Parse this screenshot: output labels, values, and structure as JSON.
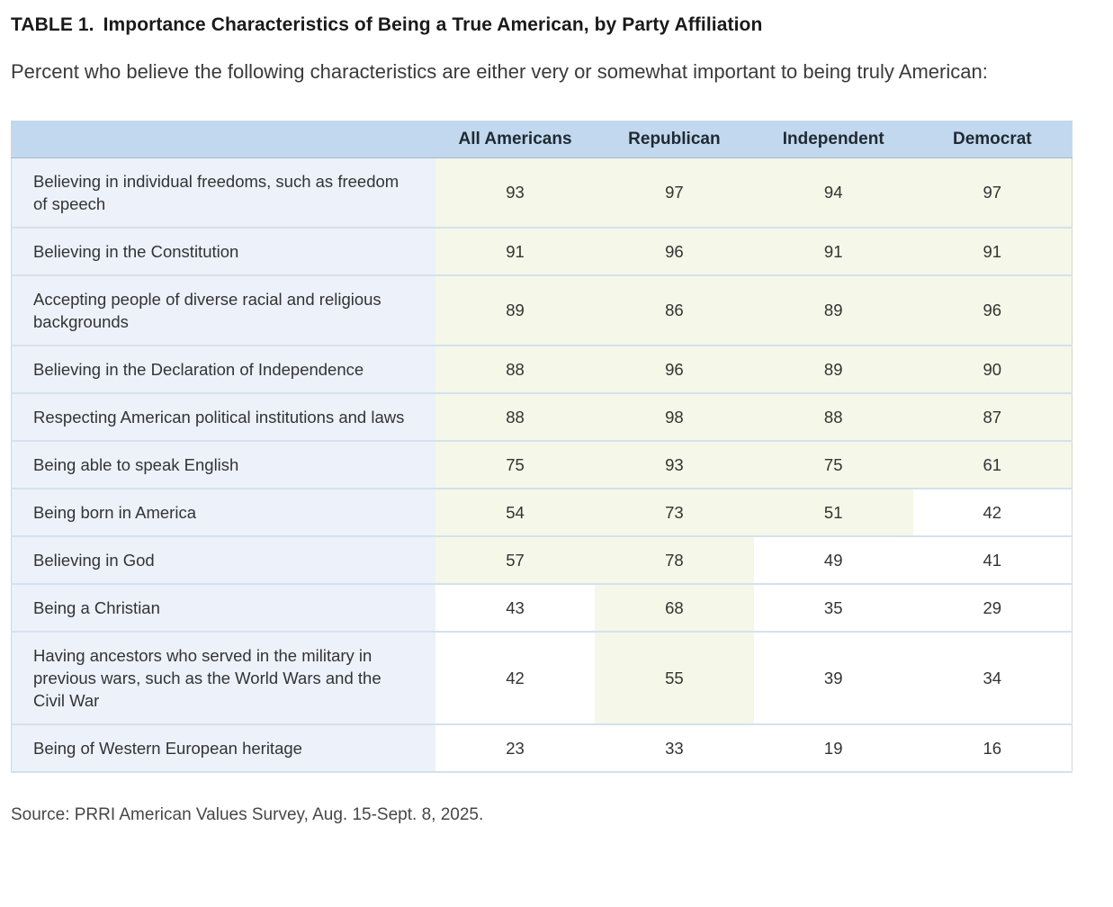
{
  "page": {
    "title_label": "TABLE 1.",
    "title_text": "Importance Characteristics of Being a True American, by Party Affiliation",
    "subtitle": "Percent who believe the following characteristics are either very or somewhat important to being truly American:",
    "source": "Source: PRRI American Values Survey, Aug. 15-Sept. 8, 2025."
  },
  "colors": {
    "header_bg": "#c2d8ee",
    "label_bg": "#edf2fa",
    "highlight_bg": "#f5f7e8",
    "plain_bg": "#ffffff",
    "row_border": "#d4e2ee",
    "header_border": "#a6b8c6",
    "outer_border": "#c8d8e6",
    "text": "#333333",
    "title_text": "#1a1a1a"
  },
  "chart_data": {
    "type": "table",
    "title": "TABLE 1. Importance Characteristics of Being a True American, by Party Affiliation",
    "subtitle": "Percent who believe the following characteristics are either very or somewhat important to being truly American:",
    "columns": [
      "All Americans",
      "Republican",
      "Independent",
      "Democrat"
    ],
    "rows": [
      {
        "label": "Believing in individual freedoms, such as freedom of speech",
        "values": [
          93,
          97,
          94,
          97
        ]
      },
      {
        "label": "Believing in the Constitution",
        "values": [
          91,
          96,
          91,
          91
        ]
      },
      {
        "label": "Accepting people of diverse racial and religious backgrounds",
        "values": [
          89,
          86,
          89,
          96
        ]
      },
      {
        "label": "Believing in the Declaration of Independence",
        "values": [
          88,
          96,
          89,
          90
        ]
      },
      {
        "label": "Respecting American political institutions and laws",
        "values": [
          88,
          98,
          88,
          87
        ]
      },
      {
        "label": "Being able to speak English",
        "values": [
          75,
          93,
          75,
          61
        ]
      },
      {
        "label": "Being born in America",
        "values": [
          54,
          73,
          51,
          42
        ]
      },
      {
        "label": "Believing in God",
        "values": [
          57,
          78,
          49,
          41
        ]
      },
      {
        "label": "Being a Christian",
        "values": [
          43,
          68,
          35,
          29
        ]
      },
      {
        "label": "Having ancestors who served in the military in previous wars, such as the World Wars and the Civil War",
        "values": [
          42,
          55,
          39,
          34
        ]
      },
      {
        "label": "Being of Western European heritage",
        "values": [
          23,
          33,
          19,
          16
        ]
      }
    ],
    "highlight_threshold": 50,
    "highlight_rule": "cells with value >= 50 have pale green background, below 50 are white",
    "source": "Source: PRRI American Values Survey, Aug. 15-Sept. 8, 2025."
  }
}
